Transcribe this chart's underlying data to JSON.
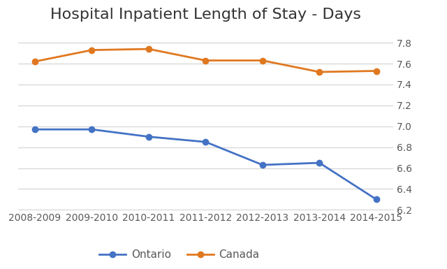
{
  "title": "Hospital Inpatient Length of Stay - Days",
  "years": [
    "2008-2009",
    "2009-2010",
    "2010-2011",
    "2011-2012",
    "2012-2013",
    "2013-2014",
    "2014-2015"
  ],
  "ontario": [
    6.97,
    6.97,
    6.9,
    6.85,
    6.63,
    6.65,
    6.3
  ],
  "canada": [
    7.62,
    7.73,
    7.74,
    7.63,
    7.63,
    7.52,
    7.53
  ],
  "ontario_color": "#4472C4",
  "canada_color": "#E07820",
  "ontario_label": "Ontario",
  "canada_label": "Canada",
  "ylim": [
    6.2,
    7.9
  ],
  "yticks": [
    6.2,
    6.4,
    6.6,
    6.8,
    7.0,
    7.2,
    7.4,
    7.6,
    7.8
  ],
  "background_color": "#ffffff",
  "grid_color": "#d9d9d9",
  "title_fontsize": 16,
  "legend_fontsize": 11,
  "tick_fontsize": 10
}
